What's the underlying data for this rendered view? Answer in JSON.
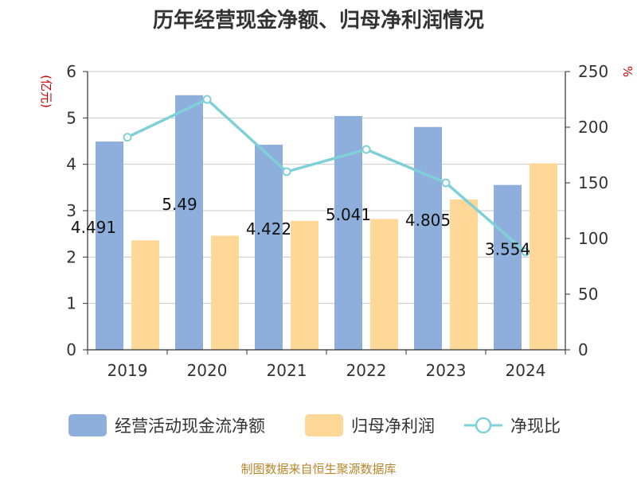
{
  "chart_data": {
    "type": "bar",
    "title": "历年经营现金净额、归母净利润情况",
    "categories": [
      "2019",
      "2020",
      "2021",
      "2022",
      "2023",
      "2024"
    ],
    "series": [
      {
        "name": "经营活动现金流净额",
        "type": "bar",
        "axis": "left",
        "color": "#8eaedb",
        "values": [
          4.491,
          5.49,
          4.422,
          5.041,
          4.805,
          3.554
        ],
        "labels": [
          "4.491",
          "5.49",
          "4.422",
          "5.041",
          "4.805",
          "3.554"
        ]
      },
      {
        "name": "归母净利润",
        "type": "bar",
        "axis": "left",
        "color": "#ffd796",
        "values": [
          2.36,
          2.46,
          2.78,
          2.82,
          3.24,
          4.02
        ]
      },
      {
        "name": "净现比",
        "type": "line",
        "axis": "right",
        "color": "#80d0d8",
        "values": [
          191,
          225,
          160,
          180,
          150,
          88
        ]
      }
    ],
    "y_left": {
      "unit": "(亿元)",
      "ylim": [
        0,
        6
      ],
      "ticks": [
        "0",
        "1",
        "2",
        "3",
        "4",
        "5",
        "6"
      ]
    },
    "y_right": {
      "unit": "%",
      "ylim": [
        0,
        250
      ],
      "ticks": [
        "0",
        "50",
        "100",
        "150",
        "200",
        "250"
      ]
    },
    "grid": true,
    "legend": "bottom",
    "source": "制图数据来自恒生聚源数据库"
  }
}
